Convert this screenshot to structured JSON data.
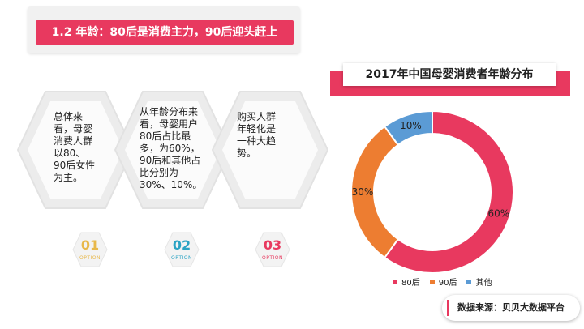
{
  "header": {
    "title": "1.2 年龄：80后是消费主力，90后迎头赶上"
  },
  "cards": [
    {
      "text": "总体来看，母婴消费人群以80、90后女性为主。",
      "lines": [
        "总体来",
        "看，母婴",
        "消费人群",
        "以80、",
        "90后女性",
        "为主。"
      ]
    },
    {
      "text": "从年龄分布来看，母婴用户80后占比最多，为60%，90后和其他占比分别为30%、10%。",
      "lines": [
        "从年龄分布来",
        "看，母婴用户",
        "80后占比最",
        "多，为60%，",
        "90后和其他占",
        "比分别为",
        "30%、10%。"
      ]
    },
    {
      "text": "购买人群年轻化是一种大趋势。",
      "lines": [
        "购买人群",
        "年轻化是",
        "一种大趋",
        "势。"
      ]
    }
  ],
  "options": [
    {
      "num": "01",
      "word": "OPTION",
      "color": "#e8b84a"
    },
    {
      "num": "02",
      "word": "OPTION",
      "color": "#2aa3c4"
    },
    {
      "num": "03",
      "word": "OPTION",
      "color": "#e8395f"
    }
  ],
  "chart_data": {
    "type": "pie",
    "title": "2017年中国母婴消费者年龄分布",
    "categories": [
      "80后",
      "90后",
      "其他"
    ],
    "values": [
      60,
      30,
      10
    ],
    "labels": [
      "60%",
      "30%",
      "10%"
    ],
    "colors": [
      "#e8395f",
      "#ed7d31",
      "#5b9bd5"
    ],
    "donut": true,
    "legend_position": "bottom"
  },
  "source": {
    "text": "数据来源：贝贝大数据平台"
  }
}
